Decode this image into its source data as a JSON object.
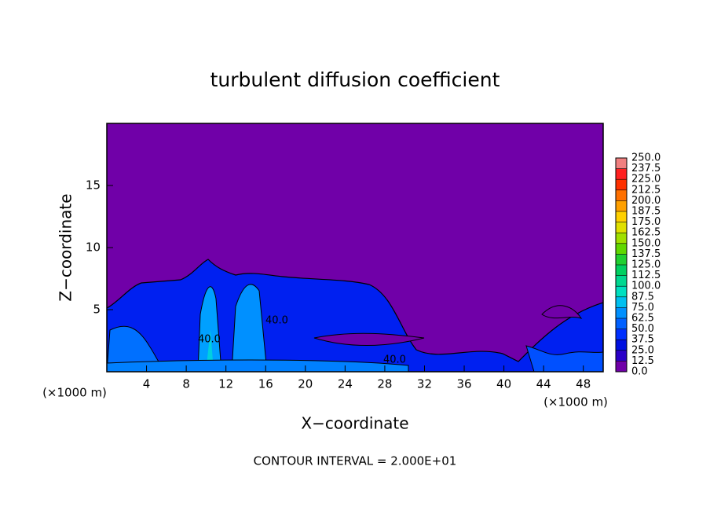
{
  "chart_data": {
    "type": "contour",
    "title": "turbulent diffusion coefficient",
    "x_label": "X−coordinate",
    "y_label": "Z−coordinate",
    "x_unit": "(×1000 m)",
    "xlim": [
      0,
      50
    ],
    "ylim": [
      0,
      20
    ],
    "xticks": [
      4,
      8,
      12,
      16,
      20,
      24,
      28,
      32,
      36,
      40,
      44,
      48
    ],
    "yticks": [
      5,
      10,
      15
    ],
    "contour_labels": [
      "40.0",
      "40.0",
      "40.0"
    ],
    "footer": "CONTOUR INTERVAL = 2.000E+01",
    "colorbar": {
      "levels": [
        {
          "value": 0,
          "label": "0.0"
        },
        {
          "value": 12.5,
          "label": "12.5"
        },
        {
          "value": 25,
          "label": "25.0"
        },
        {
          "value": 37.5,
          "label": "37.5"
        },
        {
          "value": 50,
          "label": "50.0"
        },
        {
          "value": 62.5,
          "label": "62.5"
        },
        {
          "value": 75,
          "label": "75.0"
        },
        {
          "value": 87.5,
          "label": "87.5"
        },
        {
          "value": 100,
          "label": "100.0"
        },
        {
          "value": 112.5,
          "label": "112.5"
        },
        {
          "value": 125,
          "label": "125.0"
        },
        {
          "value": 137.5,
          "label": "137.5"
        },
        {
          "value": 150,
          "label": "150.0"
        },
        {
          "value": 162.5,
          "label": "162.5"
        },
        {
          "value": 175,
          "label": "175.0"
        },
        {
          "value": 187.5,
          "label": "187.5"
        },
        {
          "value": 200,
          "label": "200.0"
        },
        {
          "value": 212.5,
          "label": "212.5"
        },
        {
          "value": 225,
          "label": "225.0"
        },
        {
          "value": 237.5,
          "label": "237.5"
        },
        {
          "value": 250,
          "label": "250.0"
        }
      ],
      "colors": [
        "#7000a8",
        "#2a00c8",
        "#0010e0",
        "#0030ff",
        "#0060ff",
        "#0090ff",
        "#00c0f0",
        "#00e0c0",
        "#00d890",
        "#00d060",
        "#20d030",
        "#60d800",
        "#a0e000",
        "#e0e000",
        "#ffd000",
        "#ffa000",
        "#ff7000",
        "#ff3000",
        "#ff2020",
        "#f08080"
      ]
    }
  }
}
